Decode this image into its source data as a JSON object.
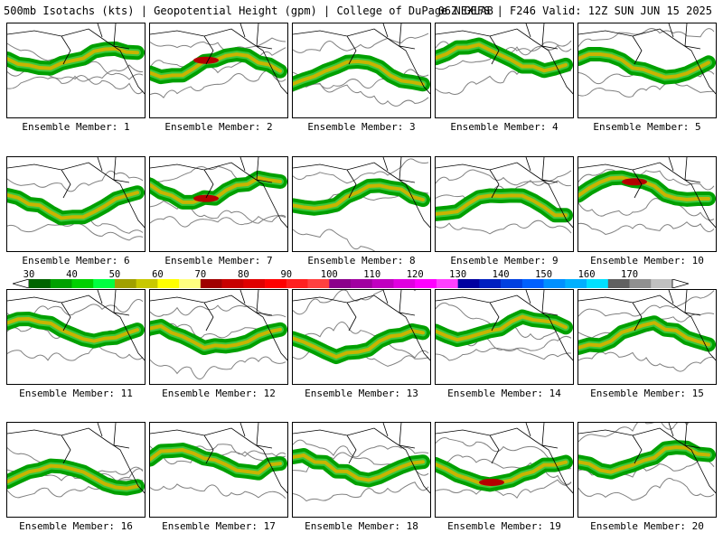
{
  "header": {
    "left": "500mb Isotachs (kts) | Geopotential Height (gpm) | College of DuPage NEXLAB",
    "right": "06Z GEFS | F246 Valid: 12Z SUN JUN 15 2025"
  },
  "members": [
    {
      "label": "Ensemble Member: 1"
    },
    {
      "label": "Ensemble Member: 2"
    },
    {
      "label": "Ensemble Member: 3"
    },
    {
      "label": "Ensemble Member: 4"
    },
    {
      "label": "Ensemble Member: 5"
    },
    {
      "label": "Ensemble Member: 6"
    },
    {
      "label": "Ensemble Member: 7"
    },
    {
      "label": "Ensemble Member: 8"
    },
    {
      "label": "Ensemble Member: 9"
    },
    {
      "label": "Ensemble Member: 10"
    },
    {
      "label": "Ensemble Member: 11"
    },
    {
      "label": "Ensemble Member: 12"
    },
    {
      "label": "Ensemble Member: 13"
    },
    {
      "label": "Ensemble Member: 14"
    },
    {
      "label": "Ensemble Member: 15"
    },
    {
      "label": "Ensemble Member: 16"
    },
    {
      "label": "Ensemble Member: 17"
    },
    {
      "label": "Ensemble Member: 18"
    },
    {
      "label": "Ensemble Member: 19"
    },
    {
      "label": "Ensemble Member: 20"
    }
  ],
  "colorbar": {
    "labels": [
      "30",
      "40",
      "50",
      "60",
      "70",
      "80",
      "90",
      "100",
      "110",
      "120",
      "130",
      "140",
      "150",
      "160",
      "170"
    ],
    "colors": [
      "#006400",
      "#00a000",
      "#00d000",
      "#00ff40",
      "#a0a000",
      "#c8c800",
      "#ffff00",
      "#ffff80",
      "#a00000",
      "#c80000",
      "#e00000",
      "#ff0000",
      "#ff2020",
      "#ff4040",
      "#8b008b",
      "#a000a0",
      "#c000c0",
      "#e000e0",
      "#ff00ff",
      "#ff40ff",
      "#0000a0",
      "#0020c0",
      "#0040e0",
      "#0060ff",
      "#0090ff",
      "#00b0ff",
      "#00e0ff",
      "#606060",
      "#909090",
      "#c0c0c0"
    ]
  },
  "legend_colors": {
    "jet_low": "#00a000",
    "jet_mid": "#c8b400",
    "jet_high": "#b40000",
    "height_contour": "#808080",
    "coastline": "#000000"
  }
}
